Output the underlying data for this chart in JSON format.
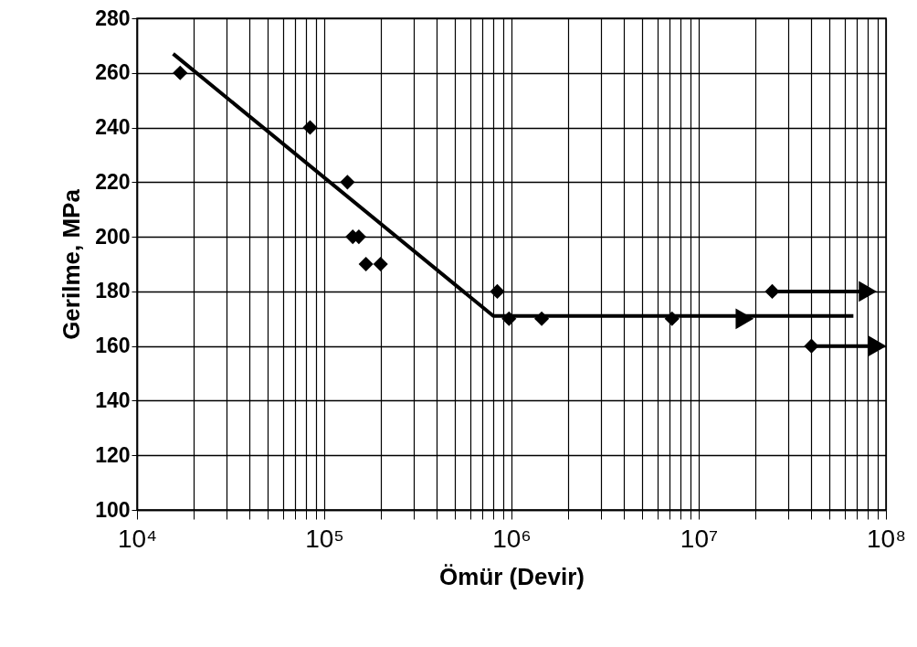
{
  "chart_data": {
    "type": "scatter",
    "xlabel": "Ömür (Devir)",
    "ylabel": "Gerilme, MPa",
    "log": "x",
    "grid": true,
    "xlim": [
      10000,
      100000000
    ],
    "xticks": [
      {
        "value": 10000,
        "label": "10⁴"
      },
      {
        "value": 20000,
        "label": null
      },
      {
        "value": 30000,
        "label": null
      },
      {
        "value": 40000,
        "label": null
      },
      {
        "value": 50000,
        "label": null
      },
      {
        "value": 60000,
        "label": null
      },
      {
        "value": 70000,
        "label": null
      },
      {
        "value": 80000,
        "label": null
      },
      {
        "value": 90000,
        "label": null
      },
      {
        "value": 100000,
        "label": "10⁵"
      },
      {
        "value": 200000,
        "label": null
      },
      {
        "value": 300000,
        "label": null
      },
      {
        "value": 400000,
        "label": null
      },
      {
        "value": 500000,
        "label": null
      },
      {
        "value": 600000,
        "label": null
      },
      {
        "value": 700000,
        "label": null
      },
      {
        "value": 800000,
        "label": null
      },
      {
        "value": 900000,
        "label": null
      },
      {
        "value": 1000000,
        "label": "10⁶"
      },
      {
        "value": 2000000,
        "label": null
      },
      {
        "value": 3000000,
        "label": null
      },
      {
        "value": 4000000,
        "label": null
      },
      {
        "value": 5000000,
        "label": null
      },
      {
        "value": 6000000,
        "label": null
      },
      {
        "value": 7000000,
        "label": null
      },
      {
        "value": 8000000,
        "label": null
      },
      {
        "value": 9000000,
        "label": null
      },
      {
        "value": 10000000,
        "label": "10⁷"
      },
      {
        "value": 20000000,
        "label": null
      },
      {
        "value": 30000000,
        "label": null
      },
      {
        "value": 40000000,
        "label": null
      },
      {
        "value": 50000000,
        "label": null
      },
      {
        "value": 60000000,
        "label": null
      },
      {
        "value": 70000000,
        "label": null
      },
      {
        "value": 80000000,
        "label": null
      },
      {
        "value": 90000000,
        "label": null
      },
      {
        "value": 100000000,
        "label": "10⁸"
      }
    ],
    "ylim": [
      100,
      280
    ],
    "yticks": [
      100,
      120,
      140,
      160,
      180,
      200,
      220,
      240,
      260,
      280
    ],
    "series": [
      {
        "marker": "diamond",
        "color": "#000000",
        "x": [
          17000,
          84000,
          133000,
          142000,
          153000,
          167000,
          200000,
          840000,
          970000,
          1450000,
          7200000,
          24700000,
          40000000
        ],
        "values": [
          260,
          240,
          220,
          200,
          200,
          190,
          190,
          180,
          170,
          170,
          170,
          180,
          160
        ]
      },
      {
        "type": "line",
        "marker": "none",
        "color": "#000000",
        "x": [
          15600,
          800000,
          67000000
        ],
        "values": [
          267,
          171,
          171
        ]
      },
      {
        "type": "line",
        "marker": "none",
        "color": "#000000",
        "x": [
          24700000,
          85000000
        ],
        "values": [
          180,
          180
        ]
      },
      {
        "type": "line",
        "marker": "none",
        "color": "#000000",
        "x": [
          40000000,
          95000000
        ],
        "values": [
          160,
          160
        ]
      },
      {
        "marker": "triangle",
        "color": "#000000",
        "x": [
          17600000,
          80000000,
          90000000
        ],
        "values": [
          170,
          180,
          160
        ]
      }
    ]
  }
}
